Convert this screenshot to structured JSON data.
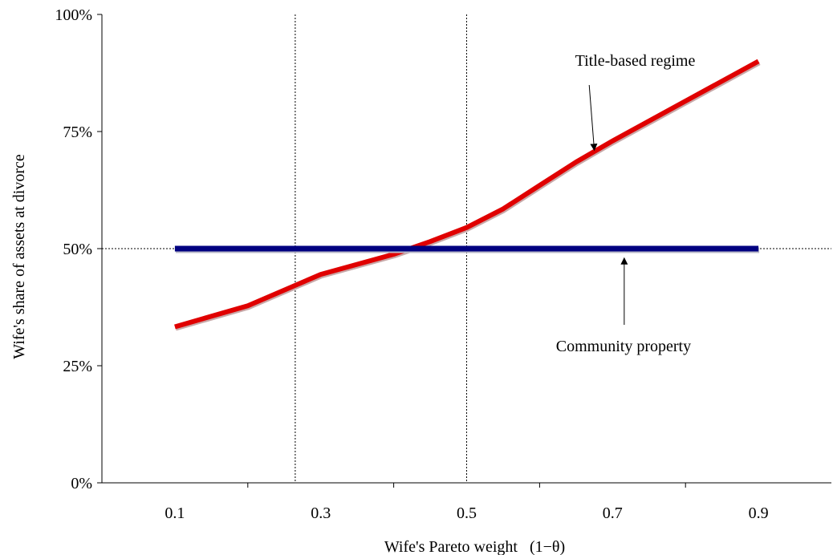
{
  "chart_data": {
    "type": "line",
    "xlabel": "Wife's Pareto weight",
    "xlabel_symbol": "(1−θ)",
    "ylabel": "Wife's share of assets at divorce",
    "xlim": [
      0.0,
      1.0
    ],
    "ylim": [
      0,
      100
    ],
    "x_ticks": [
      0.1,
      0.3,
      0.5,
      0.7,
      0.9
    ],
    "x_tick_labels": [
      "0.1",
      "0.3",
      "0.5",
      "0.7",
      "0.9"
    ],
    "y_ticks": [
      0,
      25,
      50,
      75,
      100
    ],
    "y_tick_labels": [
      "0%",
      "25%",
      "50%",
      "75%",
      "100%"
    ],
    "grid": false,
    "reference_lines": {
      "horizontal_y": 50,
      "vertical_x": [
        0.265,
        0.5
      ]
    },
    "series": [
      {
        "name": "Title-based regime",
        "color": "#E00000",
        "x": [
          0.1,
          0.2,
          0.3,
          0.4,
          0.45,
          0.5,
          0.55,
          0.6,
          0.65,
          0.7,
          0.8,
          0.9
        ],
        "y": [
          33.3,
          37.8,
          44.5,
          48.8,
          51.5,
          54.5,
          58.5,
          63.5,
          68.5,
          73.0,
          81.5,
          90.0
        ]
      },
      {
        "name": "Community property",
        "color": "#000080",
        "x": [
          0.1,
          0.9
        ],
        "y": [
          50,
          50
        ]
      }
    ],
    "annotations": [
      {
        "text": "Title-based regime",
        "points_to_series": 0
      },
      {
        "text": "Community property",
        "points_to_series": 1
      }
    ]
  }
}
